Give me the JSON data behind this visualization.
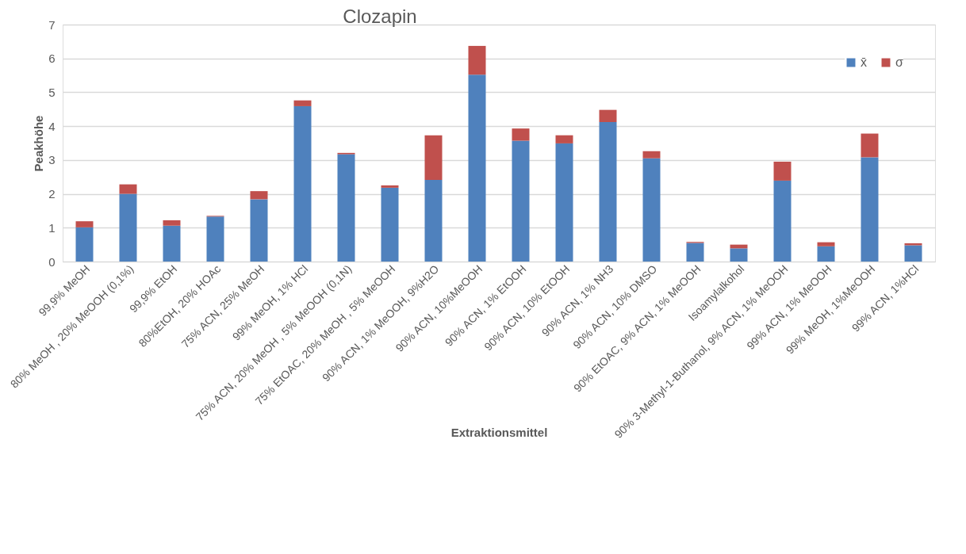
{
  "chart_data": {
    "type": "bar",
    "title": "Clozapin",
    "xlabel": "Extraktionsmittel",
    "ylabel": "Peakhöhe",
    "stacked": true,
    "categories": [
      "99,9% MeOH",
      "80% MeOH , 20% MeOOH (0,1%)",
      "99,9%  EtOH",
      "80%EtOH,  20% HOAc",
      "75% ACN, 25% MeOH",
      "99% MeOH, 1% HCl",
      "75% ACN, 20% MeOH , 5% MeOOH (0,1N)",
      "75% EtOAC, 20% MeOH , 5%  MeOOH",
      "90% ACN, 1% MeOOH, 9%H2O",
      "90% ACN, 10%MeOOH",
      "90% ACN, 1% EtOOH",
      "90% ACN, 10% EtOOH",
      "90% ACN, 1% NH3",
      "90% ACN, 10% DMSO",
      "90% EtOAC, 9% ACN, 1% MeOOH",
      "Isoamylalkohol",
      "90% 3-Methyl-1-Buthanol, 9% ACN, 1% MeOOH",
      "99% ACN, 1% MeOOH",
      "99% MeOH, 1%MeOOH",
      "99% ACN, 1%HCl"
    ],
    "series": [
      {
        "name": "x̄",
        "color": "#4f81bd",
        "values": [
          1.01,
          2.0,
          1.06,
          1.33,
          1.84,
          4.59,
          3.17,
          2.18,
          2.41,
          5.52,
          3.57,
          3.49,
          4.12,
          3.05,
          0.55,
          0.39,
          2.39,
          0.45,
          3.08,
          0.48
        ]
      },
      {
        "name": "σ",
        "color": "#c0504d",
        "values": [
          0.18,
          0.28,
          0.16,
          0.02,
          0.24,
          0.17,
          0.04,
          0.07,
          1.32,
          0.85,
          0.36,
          0.24,
          0.36,
          0.21,
          0.03,
          0.11,
          0.56,
          0.12,
          0.7,
          0.06
        ]
      }
    ],
    "ylim": [
      0,
      7
    ],
    "yticks": [
      0,
      1,
      2,
      3,
      4,
      5,
      6,
      7
    ],
    "grid": "y",
    "legend": "top right"
  }
}
